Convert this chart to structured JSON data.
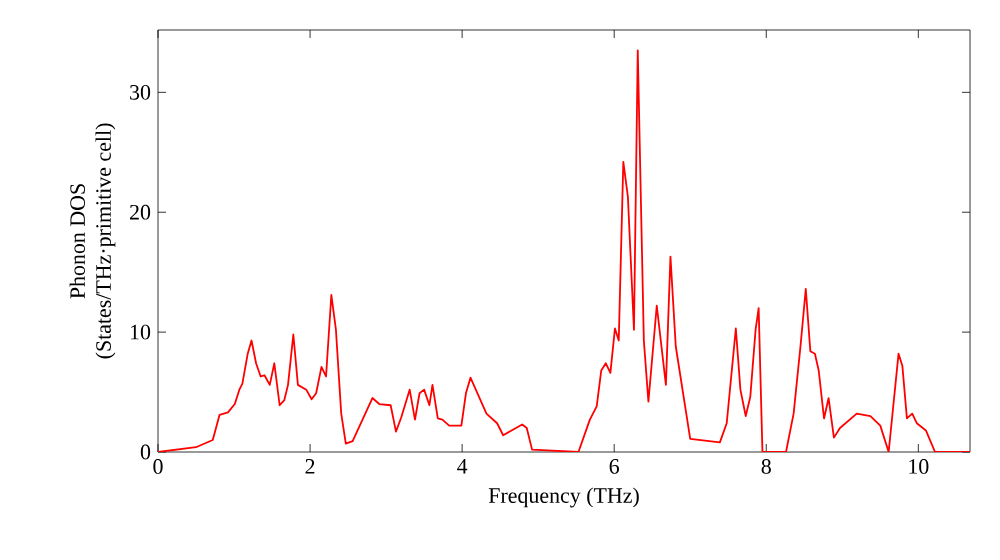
{
  "chart_data": {
    "type": "line",
    "xlabel": "Frequency (THz)",
    "ylabel": "Phonon DOS\n(States/THz·primitive cell)",
    "xlim": [
      0,
      10.68
    ],
    "ylim": [
      0,
      35.2
    ],
    "xticks": [
      0,
      2,
      4,
      6,
      8,
      10
    ],
    "yticks": [
      0,
      10,
      20,
      30
    ],
    "marker": "none",
    "line_style": "solid",
    "series": [
      {
        "color": "#ff0000",
        "x": [
          0,
          0.5,
          0.72,
          0.81,
          0.92,
          1.01,
          1.07,
          1.11,
          1.18,
          1.23,
          1.29,
          1.35,
          1.4,
          1.47,
          1.53,
          1.6,
          1.66,
          1.71,
          1.78,
          1.84,
          1.95,
          2.02,
          2.08,
          2.15,
          2.21,
          2.28,
          2.34,
          2.41,
          2.47,
          2.56,
          2.69,
          2.82,
          2.91,
          3.06,
          3.13,
          3.2,
          3.31,
          3.38,
          3.44,
          3.5,
          3.57,
          3.61,
          3.68,
          3.74,
          3.83,
          3.99,
          4.05,
          4.11,
          4.32,
          4.46,
          4.54,
          4.79,
          4.85,
          4.92,
          5.53,
          5.68,
          5.77,
          5.83,
          5.89,
          5.95,
          6.01,
          6.06,
          6.12,
          6.18,
          6.26,
          6.31,
          6.39,
          6.45,
          6.56,
          6.68,
          6.74,
          6.81,
          7,
          7.39,
          7.48,
          7.6,
          7.66,
          7.73,
          7.79,
          7.86,
          7.9,
          7.95,
          8.26,
          8.36,
          8.45,
          8.52,
          8.58,
          8.64,
          8.69,
          8.76,
          8.82,
          8.89,
          8.97,
          9.19,
          9.37,
          9.5,
          9.61,
          9.74,
          9.79,
          9.85,
          9.92,
          9.98,
          10.1,
          10.22,
          10.68
        ],
        "values": [
          0,
          0.4,
          1,
          3.1,
          3.3,
          4,
          5.2,
          5.7,
          8.2,
          9.3,
          7.4,
          6.3,
          6.4,
          5.6,
          7.4,
          3.9,
          4.3,
          5.6,
          9.8,
          5.6,
          5.2,
          4.4,
          4.9,
          7.1,
          6.3,
          13.1,
          10.2,
          3.2,
          0.7,
          0.9,
          2.7,
          4.5,
          4,
          3.9,
          1.7,
          2.9,
          5.2,
          2.7,
          4.9,
          5.2,
          3.9,
          5.6,
          2.8,
          2.7,
          2.2,
          2.2,
          4.9,
          6.2,
          3.2,
          2.4,
          1.4,
          2.3,
          2,
          0.2,
          0,
          2.7,
          3.8,
          6.8,
          7.4,
          6.6,
          10.3,
          9.3,
          24.2,
          21.3,
          10.2,
          33.5,
          9.3,
          4.2,
          12.2,
          5.6,
          16.3,
          8.8,
          1.1,
          0.8,
          2.4,
          10.3,
          5.2,
          3,
          4.6,
          10.2,
          12,
          0,
          0,
          3.2,
          8.8,
          13.6,
          8.4,
          8.2,
          6.8,
          2.8,
          4.5,
          1.2,
          2,
          3.2,
          3,
          2.2,
          0,
          8.2,
          7.2,
          2.8,
          3.2,
          2.4,
          1.8,
          0,
          0
        ]
      }
    ]
  }
}
